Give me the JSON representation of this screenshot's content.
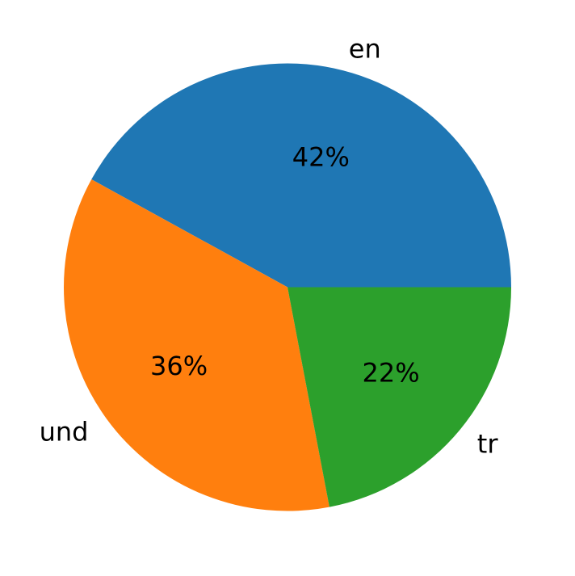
{
  "chart_data": {
    "type": "pie",
    "title": "",
    "categories": [
      "en",
      "und",
      "tr"
    ],
    "values": [
      42,
      36,
      22
    ],
    "percent_labels": [
      "42%",
      "36%",
      "22%"
    ],
    "colors": [
      "#1f77b4",
      "#ff7f0e",
      "#2ca02c"
    ],
    "start_angle_deg": 0,
    "direction": "counterclockwise",
    "legend": "none"
  }
}
